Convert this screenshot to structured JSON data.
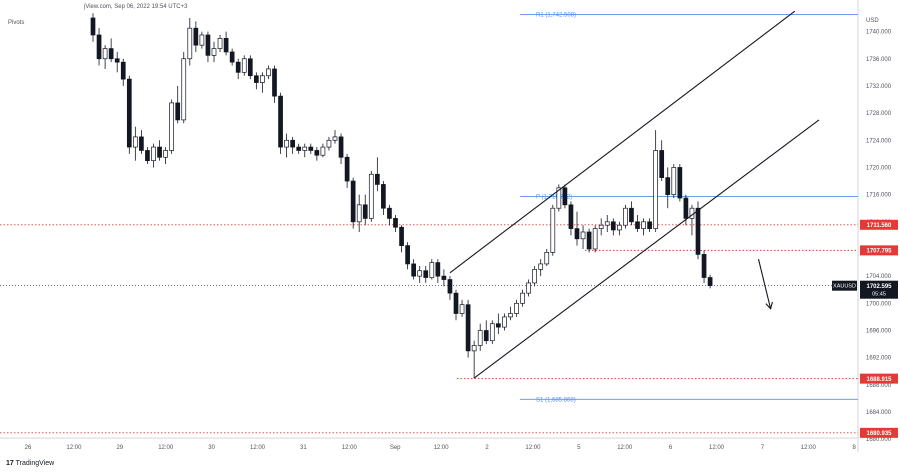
{
  "header": {
    "source_text": "jView.com, Sep 06, 2022 19:54 UTC+3",
    "indicator_text": "Pivots"
  },
  "footer": {
    "brand": "TradingView"
  },
  "chart_data": {
    "type": "candlestick",
    "symbol": "XAUUSD",
    "currency": "USD",
    "ylim": [
      1680.0,
      1743.0
    ],
    "y_ticks": [
      1740,
      1736,
      1732,
      1728,
      1724,
      1720,
      1716,
      1712,
      1708,
      1704,
      1700,
      1696,
      1692,
      1688,
      1684,
      1680
    ],
    "y_tick_labels": [
      "1740.000",
      "1736.000",
      "1732.000",
      "1728.000",
      "1724.000",
      "1720.000",
      "1716.000",
      "1712.000",
      "1708.000",
      "1704.000",
      "1700.000",
      "1696.000",
      "1692.000",
      "1688.000",
      "1684.000",
      "1680.000"
    ],
    "x_tick_labels": [
      "26",
      "12:00",
      "29",
      "12:00",
      "30",
      "12:00",
      "31",
      "12:00",
      "Sep",
      "12:00",
      "2",
      "12:00",
      "5",
      "12:00",
      "6",
      "12:00",
      "7",
      "12:00",
      "8"
    ],
    "pivots": [
      {
        "label": "R1 (1,742.508)",
        "value": 1742.508
      },
      {
        "label": "P (1,715.712)",
        "value": 1715.712
      },
      {
        "label": "S1 (1,685.868)",
        "value": 1685.868
      }
    ],
    "levels": [
      {
        "value": 1711.56,
        "label": "1711.560"
      },
      {
        "value": 1707.795,
        "label": "1707.795"
      },
      {
        "value": 1688.915,
        "label": "1688.915"
      },
      {
        "value": 1680.935,
        "label": "1680.935"
      }
    ],
    "last_price": {
      "symbol": "XAUUSD",
      "value": 1702.595,
      "label": "1702.595",
      "countdown": "05:45"
    },
    "candles": [
      [
        1742,
        1742.7,
        1738.5,
        1739.5
      ],
      [
        1739.5,
        1740.5,
        1735,
        1736
      ],
      [
        1736,
        1738,
        1734.5,
        1737.5
      ],
      [
        1737.5,
        1739,
        1735.5,
        1736
      ],
      [
        1736,
        1737,
        1734,
        1735.5
      ],
      [
        1735.5,
        1736,
        1732,
        1733
      ],
      [
        1733,
        1733.5,
        1722,
        1723
      ],
      [
        1723,
        1726,
        1721,
        1724.5
      ],
      [
        1724.5,
        1725.5,
        1722,
        1722.5
      ],
      [
        1722.5,
        1723,
        1720.5,
        1721
      ],
      [
        1721,
        1723.5,
        1720,
        1723
      ],
      [
        1723,
        1724,
        1721,
        1721.5
      ],
      [
        1721.5,
        1723,
        1720.5,
        1722.5
      ],
      [
        1722.5,
        1730,
        1722,
        1729.5
      ],
      [
        1729.5,
        1732,
        1726.5,
        1727
      ],
      [
        1727,
        1737,
        1726.5,
        1736
      ],
      [
        1736,
        1742,
        1735,
        1740.5
      ],
      [
        1740.5,
        1741.5,
        1737,
        1738
      ],
      [
        1738,
        1740,
        1737.5,
        1739.5
      ],
      [
        1739.5,
        1740,
        1735.5,
        1736.5
      ],
      [
        1736.5,
        1738.5,
        1735.5,
        1737.5
      ],
      [
        1737.5,
        1739.5,
        1737,
        1739
      ],
      [
        1739,
        1740,
        1736.5,
        1737
      ],
      [
        1737,
        1737.5,
        1735,
        1735.5
      ],
      [
        1735.5,
        1736,
        1733,
        1734
      ],
      [
        1734,
        1736.5,
        1733.5,
        1736
      ],
      [
        1736,
        1736.5,
        1733,
        1733.5
      ],
      [
        1733.5,
        1734,
        1731.5,
        1732.5
      ],
      [
        1732.5,
        1734,
        1731,
        1733.5
      ],
      [
        1733.5,
        1735,
        1733,
        1734.5
      ],
      [
        1734.5,
        1735,
        1729.5,
        1730.5
      ],
      [
        1730.5,
        1731,
        1722,
        1723
      ],
      [
        1723,
        1725,
        1721.5,
        1724
      ],
      [
        1724,
        1724.5,
        1722,
        1723
      ],
      [
        1723,
        1723.5,
        1722,
        1722.5
      ],
      [
        1722.5,
        1723.5,
        1721.5,
        1723
      ],
      [
        1723,
        1723.5,
        1722,
        1722.5
      ],
      [
        1722.5,
        1723,
        1721,
        1721.8
      ],
      [
        1721.8,
        1723.5,
        1721.5,
        1723
      ],
      [
        1723,
        1724.5,
        1722.5,
        1724
      ],
      [
        1724,
        1725.5,
        1723.5,
        1724.5
      ],
      [
        1724.5,
        1725,
        1720.5,
        1721.5
      ],
      [
        1721.5,
        1722,
        1717,
        1718
      ],
      [
        1718,
        1718.5,
        1711,
        1712
      ],
      [
        1712,
        1716,
        1710.5,
        1714.5
      ],
      [
        1714.5,
        1716,
        1711.5,
        1712.5
      ],
      [
        1712.5,
        1719.5,
        1712,
        1719
      ],
      [
        1719,
        1721.5,
        1716.5,
        1717.5
      ],
      [
        1717.5,
        1718,
        1713,
        1714
      ],
      [
        1714,
        1714.5,
        1711.5,
        1712.5
      ],
      [
        1712.5,
        1713,
        1710.5,
        1711.2
      ],
      [
        1711.2,
        1711.5,
        1707.5,
        1708.5
      ],
      [
        1708.5,
        1709,
        1705,
        1705.8
      ],
      [
        1705.8,
        1706.5,
        1703.5,
        1704
      ],
      [
        1704,
        1705.5,
        1703,
        1704.8
      ],
      [
        1704.8,
        1705.5,
        1703,
        1703.8
      ],
      [
        1703.8,
        1706.5,
        1703.5,
        1706
      ],
      [
        1706,
        1706.5,
        1703,
        1704
      ],
      [
        1704,
        1705,
        1702.5,
        1703.5
      ],
      [
        1703.5,
        1704,
        1700.5,
        1701.5
      ],
      [
        1701.5,
        1702,
        1697.5,
        1698.5
      ],
      [
        1698.5,
        1700.5,
        1698,
        1699.8
      ],
      [
        1699.8,
        1700.5,
        1692,
        1693
      ],
      [
        1693,
        1694.5,
        1689,
        1693.8
      ],
      [
        1693.8,
        1697,
        1693,
        1696
      ],
      [
        1696,
        1697.5,
        1694,
        1694.5
      ],
      [
        1694.5,
        1697.5,
        1694,
        1697
      ],
      [
        1697,
        1698.5,
        1695.5,
        1696.5
      ],
      [
        1696.5,
        1698.5,
        1696,
        1698
      ],
      [
        1698,
        1699.5,
        1697.5,
        1698.5
      ],
      [
        1698.5,
        1700.5,
        1698,
        1700
      ],
      [
        1700,
        1702,
        1699.5,
        1701.5
      ],
      [
        1701.5,
        1703.5,
        1701,
        1703
      ],
      [
        1703,
        1705.5,
        1702.5,
        1705
      ],
      [
        1705,
        1706.5,
        1704,
        1705.8
      ],
      [
        1705.8,
        1708,
        1705.5,
        1707.5
      ],
      [
        1707.5,
        1714.5,
        1707,
        1714
      ],
      [
        1714,
        1717.5,
        1713.5,
        1717
      ],
      [
        1717,
        1717.5,
        1714,
        1714.5
      ],
      [
        1714.5,
        1715,
        1710,
        1711
      ],
      [
        1711,
        1713.5,
        1708.5,
        1709.5
      ],
      [
        1709.5,
        1711.5,
        1708,
        1710.5
      ],
      [
        1710.5,
        1711,
        1707.5,
        1708
      ],
      [
        1708,
        1711.5,
        1707.5,
        1711
      ],
      [
        1711,
        1712.5,
        1710,
        1711.5
      ],
      [
        1711.5,
        1713,
        1710.5,
        1712
      ],
      [
        1712,
        1712.5,
        1710,
        1710.8
      ],
      [
        1710.8,
        1712,
        1710,
        1711.5
      ],
      [
        1711.5,
        1714.5,
        1711,
        1714
      ],
      [
        1714,
        1715,
        1711.5,
        1712
      ],
      [
        1712,
        1713,
        1710.5,
        1711
      ],
      [
        1711,
        1712.5,
        1710,
        1712
      ],
      [
        1712,
        1712.5,
        1710.5,
        1711
      ],
      [
        1711,
        1725.5,
        1710.5,
        1722.5
      ],
      [
        1722.5,
        1724,
        1718,
        1718.5
      ],
      [
        1718.5,
        1720,
        1714,
        1716
      ],
      [
        1716,
        1720.5,
        1715.5,
        1720
      ],
      [
        1720,
        1720.5,
        1715,
        1715.5
      ],
      [
        1715.5,
        1716,
        1711.5,
        1712.5
      ],
      [
        1712.5,
        1714.5,
        1710,
        1714
      ],
      [
        1714,
        1715,
        1706.5,
        1707.2
      ],
      [
        1707.2,
        1707.8,
        1703,
        1703.8
      ],
      [
        1703.8,
        1704.2,
        1702.2,
        1702.6
      ]
    ],
    "channel_lines": [
      {
        "from": {
          "index": 59,
          "value": 1704.5
        },
        "to": {
          "index": 116,
          "value": 1743.0
        }
      },
      {
        "from": {
          "index": 63,
          "value": 1689.0
        },
        "to": {
          "index": 120,
          "value": 1727.0
        }
      }
    ],
    "arrow": {
      "from": {
        "index": 110,
        "value": 1706.5
      },
      "to": {
        "index": 112,
        "value": 1699.2
      }
    }
  }
}
